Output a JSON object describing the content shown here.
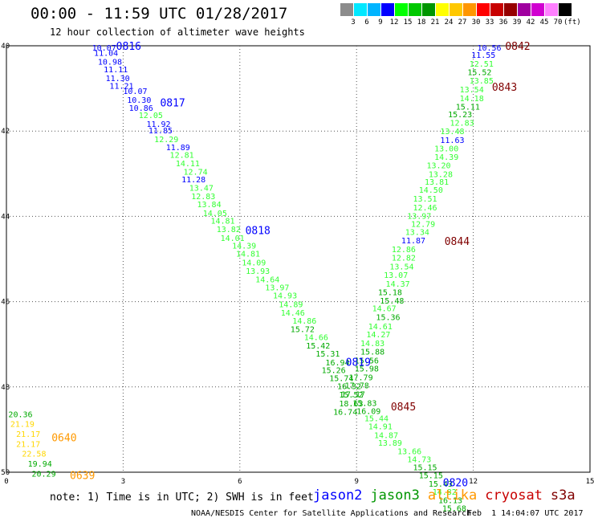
{
  "header": {
    "title": "00:00 - 11:59 UTC 01/28/2017",
    "subtitle": "12 hour collection of altimeter wave heights"
  },
  "colorbar": {
    "colors": [
      "#8c8c8c",
      "#00e8ff",
      "#00b4ff",
      "#0000ff",
      "#00ff00",
      "#00c800",
      "#009600",
      "#ffff00",
      "#ffc800",
      "#ff9600",
      "#ff0000",
      "#c80000",
      "#960000",
      "#a000a0",
      "#d000d0",
      "#ff80ff",
      "#000000"
    ],
    "labels": [
      "3",
      "6",
      "9",
      "12",
      "15",
      "18",
      "21",
      "24",
      "27",
      "30",
      "33",
      "36",
      "39",
      "42",
      "45",
      "70",
      "(ft)"
    ]
  },
  "axes": {
    "x_ticks": [
      "0",
      "3",
      "6",
      "9",
      "12",
      "15"
    ],
    "y_ticks": [
      "-40",
      "-42",
      "-44",
      "-46",
      "-48",
      "-50"
    ]
  },
  "chart_data": {
    "type": "scatter",
    "x_unit": "hours UTC",
    "y_unit": "latitude",
    "xlim": [
      0,
      15
    ],
    "ylim": [
      -50,
      -40
    ],
    "labels": [
      {
        "x": 2.2,
        "y": -40.04,
        "t": "10.07",
        "c": "#0000ff"
      },
      {
        "x": 2.25,
        "y": -40.16,
        "t": "11.04",
        "c": "#0000ff"
      },
      {
        "x": 2.35,
        "y": -40.37,
        "t": "10.98",
        "c": "#0000ff"
      },
      {
        "x": 2.5,
        "y": -40.55,
        "t": "11.11",
        "c": "#0000ff"
      },
      {
        "x": 2.55,
        "y": -40.75,
        "t": "11.30",
        "c": "#0000ff"
      },
      {
        "x": 2.65,
        "y": -40.93,
        "t": "11.21",
        "c": "#0000ff"
      },
      {
        "x": 3.0,
        "y": -41.05,
        "t": "10.07",
        "c": "#0000ff"
      },
      {
        "x": 3.1,
        "y": -41.26,
        "t": "10.30",
        "c": "#0000ff"
      },
      {
        "x": 3.15,
        "y": -41.45,
        "t": "10.86",
        "c": "#0000ff"
      },
      {
        "x": 3.4,
        "y": -41.62,
        "t": "12.05",
        "c": "#33ff33"
      },
      {
        "x": 3.6,
        "y": -41.83,
        "t": "11.92",
        "c": "#0000ff"
      },
      {
        "x": 3.65,
        "y": -41.98,
        "t": "11.85",
        "c": "#0000ff"
      },
      {
        "x": 3.8,
        "y": -42.18,
        "t": "12.29",
        "c": "#33ff33"
      },
      {
        "x": 4.1,
        "y": -42.37,
        "t": "11.89",
        "c": "#0000ff"
      },
      {
        "x": 4.2,
        "y": -42.55,
        "t": "12.81",
        "c": "#33ff33"
      },
      {
        "x": 4.35,
        "y": -42.75,
        "t": "14.11",
        "c": "#33ff33"
      },
      {
        "x": 4.55,
        "y": -42.95,
        "t": "12.74",
        "c": "#33ff33"
      },
      {
        "x": 4.5,
        "y": -43.13,
        "t": "11.28",
        "c": "#0000ff"
      },
      {
        "x": 4.7,
        "y": -43.32,
        "t": "13.47",
        "c": "#33ff33"
      },
      {
        "x": 4.75,
        "y": -43.52,
        "t": "12.83",
        "c": "#33ff33"
      },
      {
        "x": 4.9,
        "y": -43.71,
        "t": "13.84",
        "c": "#33ff33"
      },
      {
        "x": 5.05,
        "y": -43.92,
        "t": "14.05",
        "c": "#33ff33"
      },
      {
        "x": 5.25,
        "y": -44.1,
        "t": "14.81",
        "c": "#33ff33"
      },
      {
        "x": 5.4,
        "y": -44.29,
        "t": "13.82",
        "c": "#33ff33"
      },
      {
        "x": 5.5,
        "y": -44.5,
        "t": "14.01",
        "c": "#33ff33"
      },
      {
        "x": 5.8,
        "y": -44.68,
        "t": "14.39",
        "c": "#33ff33"
      },
      {
        "x": 5.9,
        "y": -44.87,
        "t": "14.81",
        "c": "#33ff33"
      },
      {
        "x": 6.05,
        "y": -45.08,
        "t": "14.09",
        "c": "#33ff33"
      },
      {
        "x": 6.15,
        "y": -45.27,
        "t": "13.93",
        "c": "#33ff33"
      },
      {
        "x": 6.4,
        "y": -45.47,
        "t": "14.64",
        "c": "#33ff33"
      },
      {
        "x": 6.65,
        "y": -45.66,
        "t": "13.97",
        "c": "#33ff33"
      },
      {
        "x": 6.85,
        "y": -45.85,
        "t": "14.93",
        "c": "#33ff33"
      },
      {
        "x": 7.0,
        "y": -46.05,
        "t": "14.89",
        "c": "#33ff33"
      },
      {
        "x": 7.05,
        "y": -46.25,
        "t": "14.46",
        "c": "#33ff33"
      },
      {
        "x": 7.35,
        "y": -46.44,
        "t": "14.86",
        "c": "#33ff33"
      },
      {
        "x": 7.3,
        "y": -46.64,
        "t": "15.72",
        "c": "#00aa00"
      },
      {
        "x": 7.65,
        "y": -46.83,
        "t": "14.66",
        "c": "#33ff33"
      },
      {
        "x": 7.7,
        "y": -47.02,
        "t": "15.42",
        "c": "#00aa00"
      },
      {
        "x": 7.95,
        "y": -47.21,
        "t": "15.31",
        "c": "#00aa00"
      },
      {
        "x": 8.2,
        "y": -47.42,
        "t": "16.94",
        "c": "#00aa00"
      },
      {
        "x": 8.1,
        "y": -47.6,
        "t": "15.26",
        "c": "#00aa00"
      },
      {
        "x": 8.3,
        "y": -47.79,
        "t": "15.74",
        "c": "#00aa00"
      },
      {
        "x": 8.5,
        "y": -47.98,
        "t": "16.32",
        "c": "#00aa00"
      },
      {
        "x": 8.55,
        "y": -48.17,
        "t": "15.52",
        "c": "#00aa00"
      },
      {
        "x": 8.9,
        "y": -48.37,
        "t": "15.83",
        "c": "#00aa00"
      },
      {
        "x": 9.0,
        "y": -48.56,
        "t": "16.09",
        "c": "#00aa00"
      },
      {
        "x": 9.2,
        "y": -48.73,
        "t": "15.44",
        "c": "#33ff33"
      },
      {
        "x": 9.3,
        "y": -48.92,
        "t": "14.91",
        "c": "#33ff33"
      },
      {
        "x": 9.45,
        "y": -49.12,
        "t": "14.87",
        "c": "#33ff33"
      },
      {
        "x": 9.55,
        "y": -49.3,
        "t": "13.89",
        "c": "#33ff33"
      },
      {
        "x": 10.05,
        "y": -49.5,
        "t": "13.66",
        "c": "#33ff33"
      },
      {
        "x": 10.3,
        "y": -49.69,
        "t": "14.73",
        "c": "#33ff33"
      },
      {
        "x": 10.45,
        "y": -49.88,
        "t": "15.15",
        "c": "#00aa00"
      },
      {
        "x": 10.6,
        "y": -50.07,
        "t": "15.15",
        "c": "#00aa00"
      },
      {
        "x": 10.85,
        "y": -50.26,
        "t": "15.43",
        "c": "#00aa00"
      },
      {
        "x": 10.95,
        "y": -50.45,
        "t": "14.82",
        "c": "#33ff33"
      },
      {
        "x": 11.1,
        "y": -50.65,
        "t": "16.13",
        "c": "#00aa00"
      },
      {
        "x": 11.2,
        "y": -50.84,
        "t": "15.68",
        "c": "#00aa00"
      },
      {
        "x": 12.1,
        "y": -40.04,
        "t": "10.56",
        "c": "#0000ff"
      },
      {
        "x": 11.95,
        "y": -40.21,
        "t": "11.55",
        "c": "#0000ff"
      },
      {
        "x": 11.9,
        "y": -40.41,
        "t": "12.51",
        "c": "#33ff33"
      },
      {
        "x": 11.85,
        "y": -40.61,
        "t": "15.52",
        "c": "#00aa00"
      },
      {
        "x": 11.9,
        "y": -40.81,
        "t": "13.85",
        "c": "#33ff33"
      },
      {
        "x": 11.65,
        "y": -41.02,
        "t": "13.54",
        "c": "#33ff33"
      },
      {
        "x": 11.65,
        "y": -41.22,
        "t": "14.18",
        "c": "#33ff33"
      },
      {
        "x": 11.55,
        "y": -41.42,
        "t": "15.11",
        "c": "#00aa00"
      },
      {
        "x": 11.35,
        "y": -41.6,
        "t": "15.23",
        "c": "#00aa00"
      },
      {
        "x": 11.4,
        "y": -41.8,
        "t": "12.83",
        "c": "#33ff33"
      },
      {
        "x": 11.15,
        "y": -42.0,
        "t": "13.48",
        "c": "#33ff33"
      },
      {
        "x": 11.15,
        "y": -42.2,
        "t": "11.63",
        "c": "#0000ff"
      },
      {
        "x": 11.0,
        "y": -42.4,
        "t": "13.00",
        "c": "#33ff33"
      },
      {
        "x": 11.0,
        "y": -42.6,
        "t": "14.39",
        "c": "#33ff33"
      },
      {
        "x": 10.8,
        "y": -42.8,
        "t": "13.20",
        "c": "#33ff33"
      },
      {
        "x": 10.85,
        "y": -43.0,
        "t": "13.28",
        "c": "#33ff33"
      },
      {
        "x": 10.75,
        "y": -43.18,
        "t": "13.81",
        "c": "#33ff33"
      },
      {
        "x": 10.6,
        "y": -43.37,
        "t": "14.50",
        "c": "#33ff33"
      },
      {
        "x": 10.45,
        "y": -43.58,
        "t": "13.51",
        "c": "#33ff33"
      },
      {
        "x": 10.45,
        "y": -43.79,
        "t": "12.46",
        "c": "#33ff33"
      },
      {
        "x": 10.3,
        "y": -43.98,
        "t": "13.97",
        "c": "#33ff33"
      },
      {
        "x": 10.4,
        "y": -44.17,
        "t": "12.79",
        "c": "#33ff33"
      },
      {
        "x": 10.25,
        "y": -44.36,
        "t": "13.34",
        "c": "#33ff33"
      },
      {
        "x": 10.15,
        "y": -44.56,
        "t": "11.87",
        "c": "#0000ff"
      },
      {
        "x": 9.9,
        "y": -44.76,
        "t": "12.86",
        "c": "#33ff33"
      },
      {
        "x": 9.9,
        "y": -44.96,
        "t": "12.82",
        "c": "#33ff33"
      },
      {
        "x": 9.85,
        "y": -45.17,
        "t": "13.54",
        "c": "#33ff33"
      },
      {
        "x": 9.7,
        "y": -45.37,
        "t": "13.07",
        "c": "#33ff33"
      },
      {
        "x": 9.75,
        "y": -45.57,
        "t": "14.37",
        "c": "#33ff33"
      },
      {
        "x": 9.55,
        "y": -45.77,
        "t": "15.18",
        "c": "#00aa00"
      },
      {
        "x": 9.6,
        "y": -45.97,
        "t": "15.48",
        "c": "#00aa00"
      },
      {
        "x": 9.4,
        "y": -46.15,
        "t": "14.67",
        "c": "#33ff33"
      },
      {
        "x": 9.5,
        "y": -46.36,
        "t": "15.36",
        "c": "#00aa00"
      },
      {
        "x": 9.3,
        "y": -46.57,
        "t": "14.61",
        "c": "#33ff33"
      },
      {
        "x": 9.25,
        "y": -46.76,
        "t": "14.27",
        "c": "#33ff33"
      },
      {
        "x": 9.1,
        "y": -46.97,
        "t": "14.83",
        "c": "#33ff33"
      },
      {
        "x": 9.1,
        "y": -47.17,
        "t": "15.88",
        "c": "#00aa00"
      },
      {
        "x": 8.95,
        "y": -47.37,
        "t": "15.56",
        "c": "#00aa00"
      },
      {
        "x": 8.95,
        "y": -47.56,
        "t": "15.98",
        "c": "#00aa00"
      },
      {
        "x": 8.8,
        "y": -47.77,
        "t": "17.79",
        "c": "#00aa00"
      },
      {
        "x": 8.7,
        "y": -47.96,
        "t": "17.78",
        "c": "#00aa00"
      },
      {
        "x": 8.6,
        "y": -48.16,
        "t": "17.17",
        "c": "#00aa00"
      },
      {
        "x": 8.55,
        "y": -48.38,
        "t": "18.63",
        "c": "#00aa00"
      },
      {
        "x": 8.4,
        "y": -48.58,
        "t": "16.74",
        "c": "#00aa00"
      },
      {
        "x": 0.05,
        "y": -48.63,
        "t": "20.36",
        "c": "#00aa00"
      },
      {
        "x": 0.1,
        "y": -48.86,
        "t": "21.19",
        "c": "#ffd700"
      },
      {
        "x": 0.25,
        "y": -49.1,
        "t": "21.17",
        "c": "#ffd700"
      },
      {
        "x": 0.25,
        "y": -49.33,
        "t": "21.17",
        "c": "#ffd700"
      },
      {
        "x": 0.4,
        "y": -49.56,
        "t": "22.58",
        "c": "#ffd700"
      },
      {
        "x": 0.55,
        "y": -49.79,
        "t": "19.94",
        "c": "#00aa00"
      },
      {
        "x": 0.65,
        "y": -50.03,
        "t": "20.29",
        "c": "#00aa00"
      }
    ],
    "passes": [
      {
        "x": 2.82,
        "y": -40.0,
        "t": "0816",
        "c": "#0000ff"
      },
      {
        "x": 3.95,
        "y": -41.33,
        "t": "0817",
        "c": "#0000ff"
      },
      {
        "x": 6.14,
        "y": -44.32,
        "t": "0818",
        "c": "#0000ff"
      },
      {
        "x": 8.72,
        "y": -47.41,
        "t": "0819",
        "c": "#0000ff"
      },
      {
        "x": 11.22,
        "y": -50.24,
        "t": "0820",
        "c": "#0000ff"
      },
      {
        "x": 12.82,
        "y": -40.0,
        "t": "0842",
        "c": "#800000"
      },
      {
        "x": 12.48,
        "y": -40.96,
        "t": "0843",
        "c": "#800000"
      },
      {
        "x": 11.26,
        "y": -44.58,
        "t": "0844",
        "c": "#800000"
      },
      {
        "x": 9.88,
        "y": -48.46,
        "t": "0845",
        "c": "#800000"
      },
      {
        "x": 1.16,
        "y": -49.18,
        "t": "0640",
        "c": "#ff9900"
      },
      {
        "x": 1.63,
        "y": -50.07,
        "t": "0639",
        "c": "#ff9900"
      }
    ]
  },
  "footer": {
    "note": "note: 1) Time is in UTC; 2) SWH is in feet",
    "satellites": [
      {
        "name": "jason2",
        "color": "#0000ff"
      },
      {
        "name": "jason3",
        "color": "#009600"
      },
      {
        "name": "altika",
        "color": "#ff9900"
      },
      {
        "name": "cryosat",
        "color": "#c80000"
      },
      {
        "name": "s3a",
        "color": "#800000"
      }
    ],
    "credit": "NOAA/NESDIS Center for Satellite Applications and Research",
    "date": "Feb  1 14:04:07 UTC 2017"
  }
}
